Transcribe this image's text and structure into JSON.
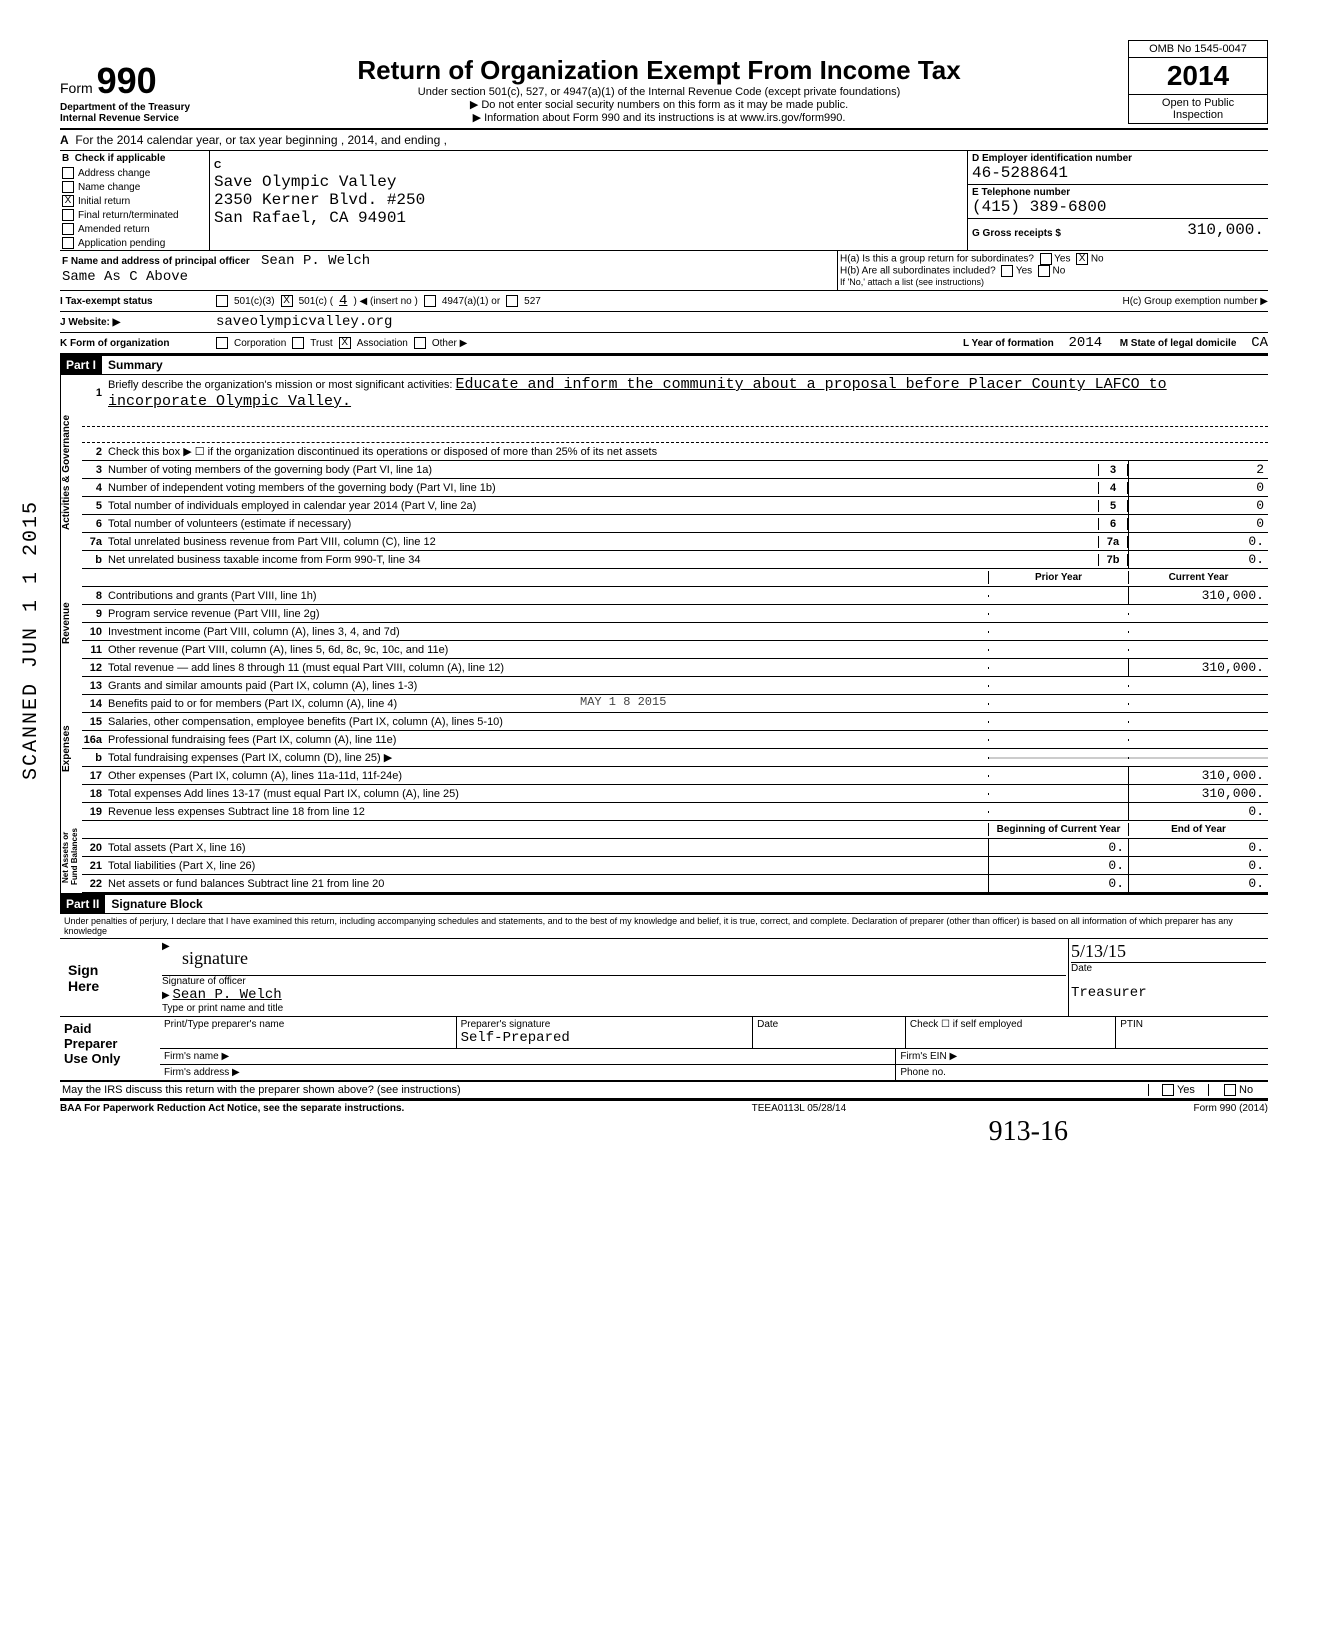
{
  "form": {
    "number_prefix": "Form",
    "number": "990",
    "omb": "OMB No 1545-0047",
    "tax_year": "2014",
    "title": "Return of Organization Exempt From Income Tax",
    "subtitle": "Under section 501(c), 527, or 4947(a)(1) of the Internal Revenue Code (except private foundations)",
    "note1": "▶ Do not enter social security numbers on this form as it may be made public.",
    "note2": "▶ Information about Form 990 and its instructions is at www.irs.gov/form990.",
    "dept": "Department of the Treasury\nInternal Revenue Service",
    "open_public": "Open to Public\nInspection"
  },
  "row_a": "For the 2014 calendar year, or tax year beginning                    , 2014, and ending                    ,",
  "section_b": {
    "header": "Check if applicable",
    "options": [
      {
        "label": "Address change",
        "checked": false
      },
      {
        "label": "Name change",
        "checked": false
      },
      {
        "label": "Initial return",
        "checked": true
      },
      {
        "label": "Final return/terminated",
        "checked": false
      },
      {
        "label": "Amended return",
        "checked": false
      },
      {
        "label": "Application pending",
        "checked": false
      }
    ]
  },
  "section_c": {
    "label": "C",
    "name": "Save Olympic Valley",
    "addr1": "2350 Kerner Blvd. #250",
    "addr2": "San Rafael, CA 94901"
  },
  "section_d": {
    "label": "D  Employer identification number",
    "value": "46-5288641"
  },
  "section_e": {
    "label": "E  Telephone number",
    "value": "(415) 389-6800"
  },
  "section_g": {
    "label": "G  Gross receipts $",
    "value": "310,000."
  },
  "section_f": {
    "label": "F  Name and address of principal officer",
    "name": "Sean P. Welch",
    "addr": "Same As C Above"
  },
  "section_h": {
    "a": "H(a) Is this a group return for subordinates?",
    "a_yes": "Yes",
    "a_no": "No",
    "a_no_checked": true,
    "b": "H(b) Are all subordinates included?",
    "b_note": "If 'No,' attach a list (see instructions)",
    "c": "H(c) Group exemption number ▶"
  },
  "row_i": {
    "label": "I      Tax-exempt status",
    "opts": [
      "501(c)(3)",
      "501(c) (",
      "4",
      ") ◀  (insert no )",
      "4947(a)(1) or",
      "527"
    ],
    "checked_idx": 1
  },
  "row_j": {
    "label": "J     Website: ▶",
    "value": "saveolympicvalley.org"
  },
  "row_k": {
    "label": "K     Form of organization",
    "opts": [
      "Corporation",
      "Trust",
      "Association",
      "Other ▶"
    ],
    "checked_idx": 2,
    "l_label": "L Year of formation",
    "l_val": "2014",
    "m_label": "M State of legal domicile",
    "m_val": "CA"
  },
  "part1": {
    "header": "Part I",
    "title": "Summary",
    "mission_label": "Briefly describe the organization's mission or most significant activities:",
    "mission": "Educate and inform the community about a proposal before Placer County LAFCO to incorporate Olympic Valley.",
    "line2": "Check this box ▶ ☐ if the organization discontinued its operations or disposed of more than 25% of its net assets",
    "lines_gov": [
      {
        "n": "3",
        "t": "Number of voting members of the governing body (Part VI, line 1a)",
        "box": "3",
        "v": "2"
      },
      {
        "n": "4",
        "t": "Number of independent voting members of the governing body (Part VI, line 1b)",
        "box": "4",
        "v": "0"
      },
      {
        "n": "5",
        "t": "Total number of individuals employed in calendar year 2014 (Part V, line 2a)",
        "box": "5",
        "v": "0"
      },
      {
        "n": "6",
        "t": "Total number of volunteers (estimate if necessary)",
        "box": "6",
        "v": "0"
      },
      {
        "n": "7a",
        "t": "Total unrelated business revenue from Part VIII, column (C), line 12",
        "box": "7a",
        "v": "0."
      },
      {
        "n": "b",
        "t": "Net unrelated business taxable income from Form 990-T, line 34",
        "box": "7b",
        "v": "0."
      }
    ],
    "col_hdr_prior": "Prior Year",
    "col_hdr_curr": "Current Year",
    "lines_rev": [
      {
        "n": "8",
        "t": "Contributions and grants (Part VIII, line 1h)",
        "a": "",
        "b": "310,000."
      },
      {
        "n": "9",
        "t": "Program service revenue (Part VIII, line 2g)",
        "a": "",
        "b": ""
      },
      {
        "n": "10",
        "t": "Investment income (Part VIII, column (A), lines 3, 4, and 7d)",
        "a": "",
        "b": ""
      },
      {
        "n": "11",
        "t": "Other revenue (Part VIII, column (A), lines 5, 6d, 8c, 9c, 10c, and 11e)",
        "a": "",
        "b": ""
      },
      {
        "n": "12",
        "t": "Total revenue — add lines 8 through 11 (must equal Part VIII, column (A), line 12)",
        "a": "",
        "b": "310,000."
      }
    ],
    "lines_exp": [
      {
        "n": "13",
        "t": "Grants and similar amounts paid (Part IX, column (A), lines 1-3)",
        "a": "",
        "b": ""
      },
      {
        "n": "14",
        "t": "Benefits paid to or for members (Part IX, column (A), line 4)",
        "a": "",
        "b": ""
      },
      {
        "n": "15",
        "t": "Salaries, other compensation, employee benefits (Part IX, column (A), lines 5-10)",
        "a": "",
        "b": ""
      },
      {
        "n": "16a",
        "t": "Professional fundraising fees (Part IX, column (A), line 11e)",
        "a": "",
        "b": ""
      },
      {
        "n": "b",
        "t": "Total fundraising expenses (Part IX, column (D), line 25) ▶",
        "a": "shaded",
        "b": "shaded"
      },
      {
        "n": "17",
        "t": "Other expenses (Part IX, column (A), lines 11a-11d, 11f-24e)",
        "a": "",
        "b": "310,000."
      },
      {
        "n": "18",
        "t": "Total expenses  Add lines 13-17 (must equal Part IX, column (A), line 25)",
        "a": "",
        "b": "310,000."
      },
      {
        "n": "19",
        "t": "Revenue less expenses  Subtract line 18 from line 12",
        "a": "",
        "b": "0."
      }
    ],
    "col_hdr_beg": "Beginning of Current Year",
    "col_hdr_end": "End of Year",
    "lines_net": [
      {
        "n": "20",
        "t": "Total assets (Part X, line 16)",
        "a": "0.",
        "b": "0."
      },
      {
        "n": "21",
        "t": "Total liabilities (Part X, line 26)",
        "a": "0.",
        "b": "0."
      },
      {
        "n": "22",
        "t": "Net assets or fund balances  Subtract line 21 from line 20",
        "a": "0.",
        "b": "0."
      }
    ],
    "sidebar_gov": "Activities & Governance",
    "sidebar_rev": "Revenue",
    "sidebar_exp": "Expenses",
    "sidebar_net": "Net Assets or\nFund Balances"
  },
  "part2": {
    "header": "Part II",
    "title": "Signature Block",
    "intro": "Under penalties of perjury, I declare that I have examined this return, including accompanying schedules and statements, and to the best of my knowledge and belief, it is true, correct, and complete. Declaration of preparer (other than officer) is based on all information of which preparer has any knowledge",
    "sign_here": "Sign\nHere",
    "sig_label": "Signature of officer",
    "date_label": "Date",
    "date_val": "5/13/15",
    "name_label": "Type or print name and title",
    "name_val": "Sean P. Welch",
    "title_val": "Treasurer",
    "paid_prep": "Paid\nPreparer\nUse Only",
    "prep_cols": [
      "Print/Type preparer's name",
      "Preparer's signature",
      "Date",
      "Check ☐ if self employed",
      "PTIN"
    ],
    "prep_sig": "Self-Prepared",
    "firm_name": "Firm's name    ▶",
    "firm_addr": "Firm's address  ▶",
    "firm_ein": "Firm's EIN ▶",
    "phone": "Phone no.",
    "irs_discuss": "May the IRS discuss this return with the preparer shown above? (see instructions)",
    "yes": "Yes",
    "no": "No"
  },
  "footer": {
    "baa": "BAA  For Paperwork Reduction Act Notice, see the separate instructions.",
    "code": "TEEA0113L 05/28/14",
    "form": "Form 990 (2014)"
  },
  "scanned": "SCANNED JUN 1 1 2015",
  "stamp": "MAY 1 8 2015",
  "handwrite": "913-16"
}
